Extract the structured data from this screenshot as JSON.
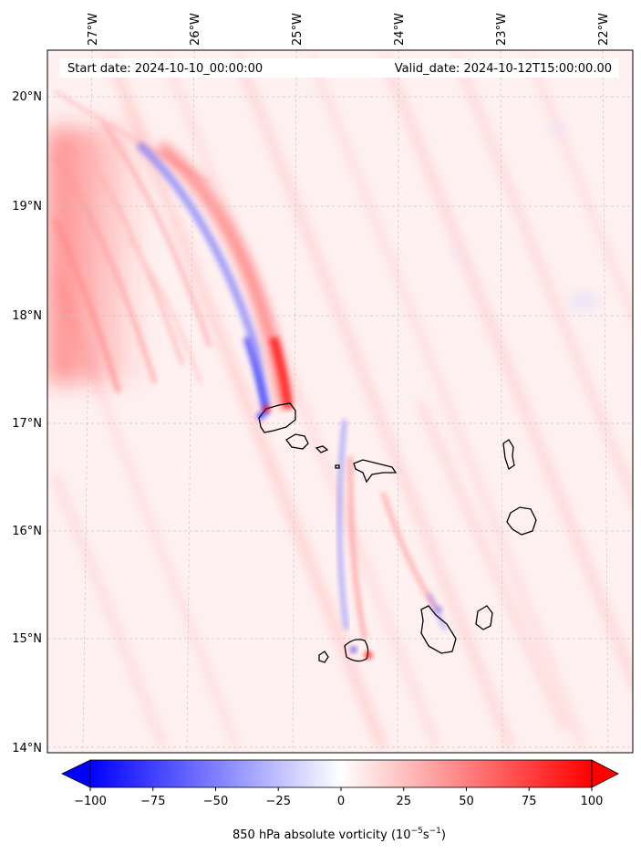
{
  "map": {
    "start_date": "Start date: 2024-10-10_00:00:00",
    "valid_date": "Valid_date: 2024-10-12T15:00:00.00",
    "lon_labels": [
      "27°W",
      "26°W",
      "25°W",
      "24°W",
      "23°W",
      "22°W"
    ],
    "lat_labels": [
      "20°N",
      "19°N",
      "18°N",
      "17°N",
      "16°N",
      "15°N",
      "14°N"
    ],
    "lon_values": [
      -27,
      -26,
      -25,
      -24,
      -23,
      -22
    ],
    "lat_values": [
      20,
      19,
      18,
      17,
      16,
      15,
      14
    ],
    "extent": {
      "lon_min": -27.35,
      "lon_max": -21.6,
      "lat_min": 13.95,
      "lat_max": 20.45
    }
  },
  "colorbar": {
    "label_main": "850 hPa absolute vorticity (10",
    "label_exp1": "−5",
    "label_mid": "s",
    "label_exp2": "−1",
    "label_end": ")",
    "ticks": [
      "−100",
      "−75",
      "−50",
      "−25",
      "0",
      "25",
      "50",
      "75",
      "100"
    ],
    "tick_values": [
      -100,
      -75,
      -50,
      -25,
      0,
      25,
      50,
      75,
      100
    ],
    "range": [
      -100,
      100
    ],
    "colormap": "bwr",
    "extend": "both"
  },
  "colors": {
    "negative": "#0000ff",
    "zero": "#ffffff",
    "positive": "#ff0000",
    "coastline": "#000000",
    "grid": "#c8c8c8"
  },
  "islands": [
    "Santo Antão",
    "São Vicente",
    "Santa Luzia",
    "Branco",
    "São Nicolau",
    "Boa Vista",
    "Sal",
    "Fogo",
    "Brava",
    "Santiago",
    "Maio"
  ]
}
